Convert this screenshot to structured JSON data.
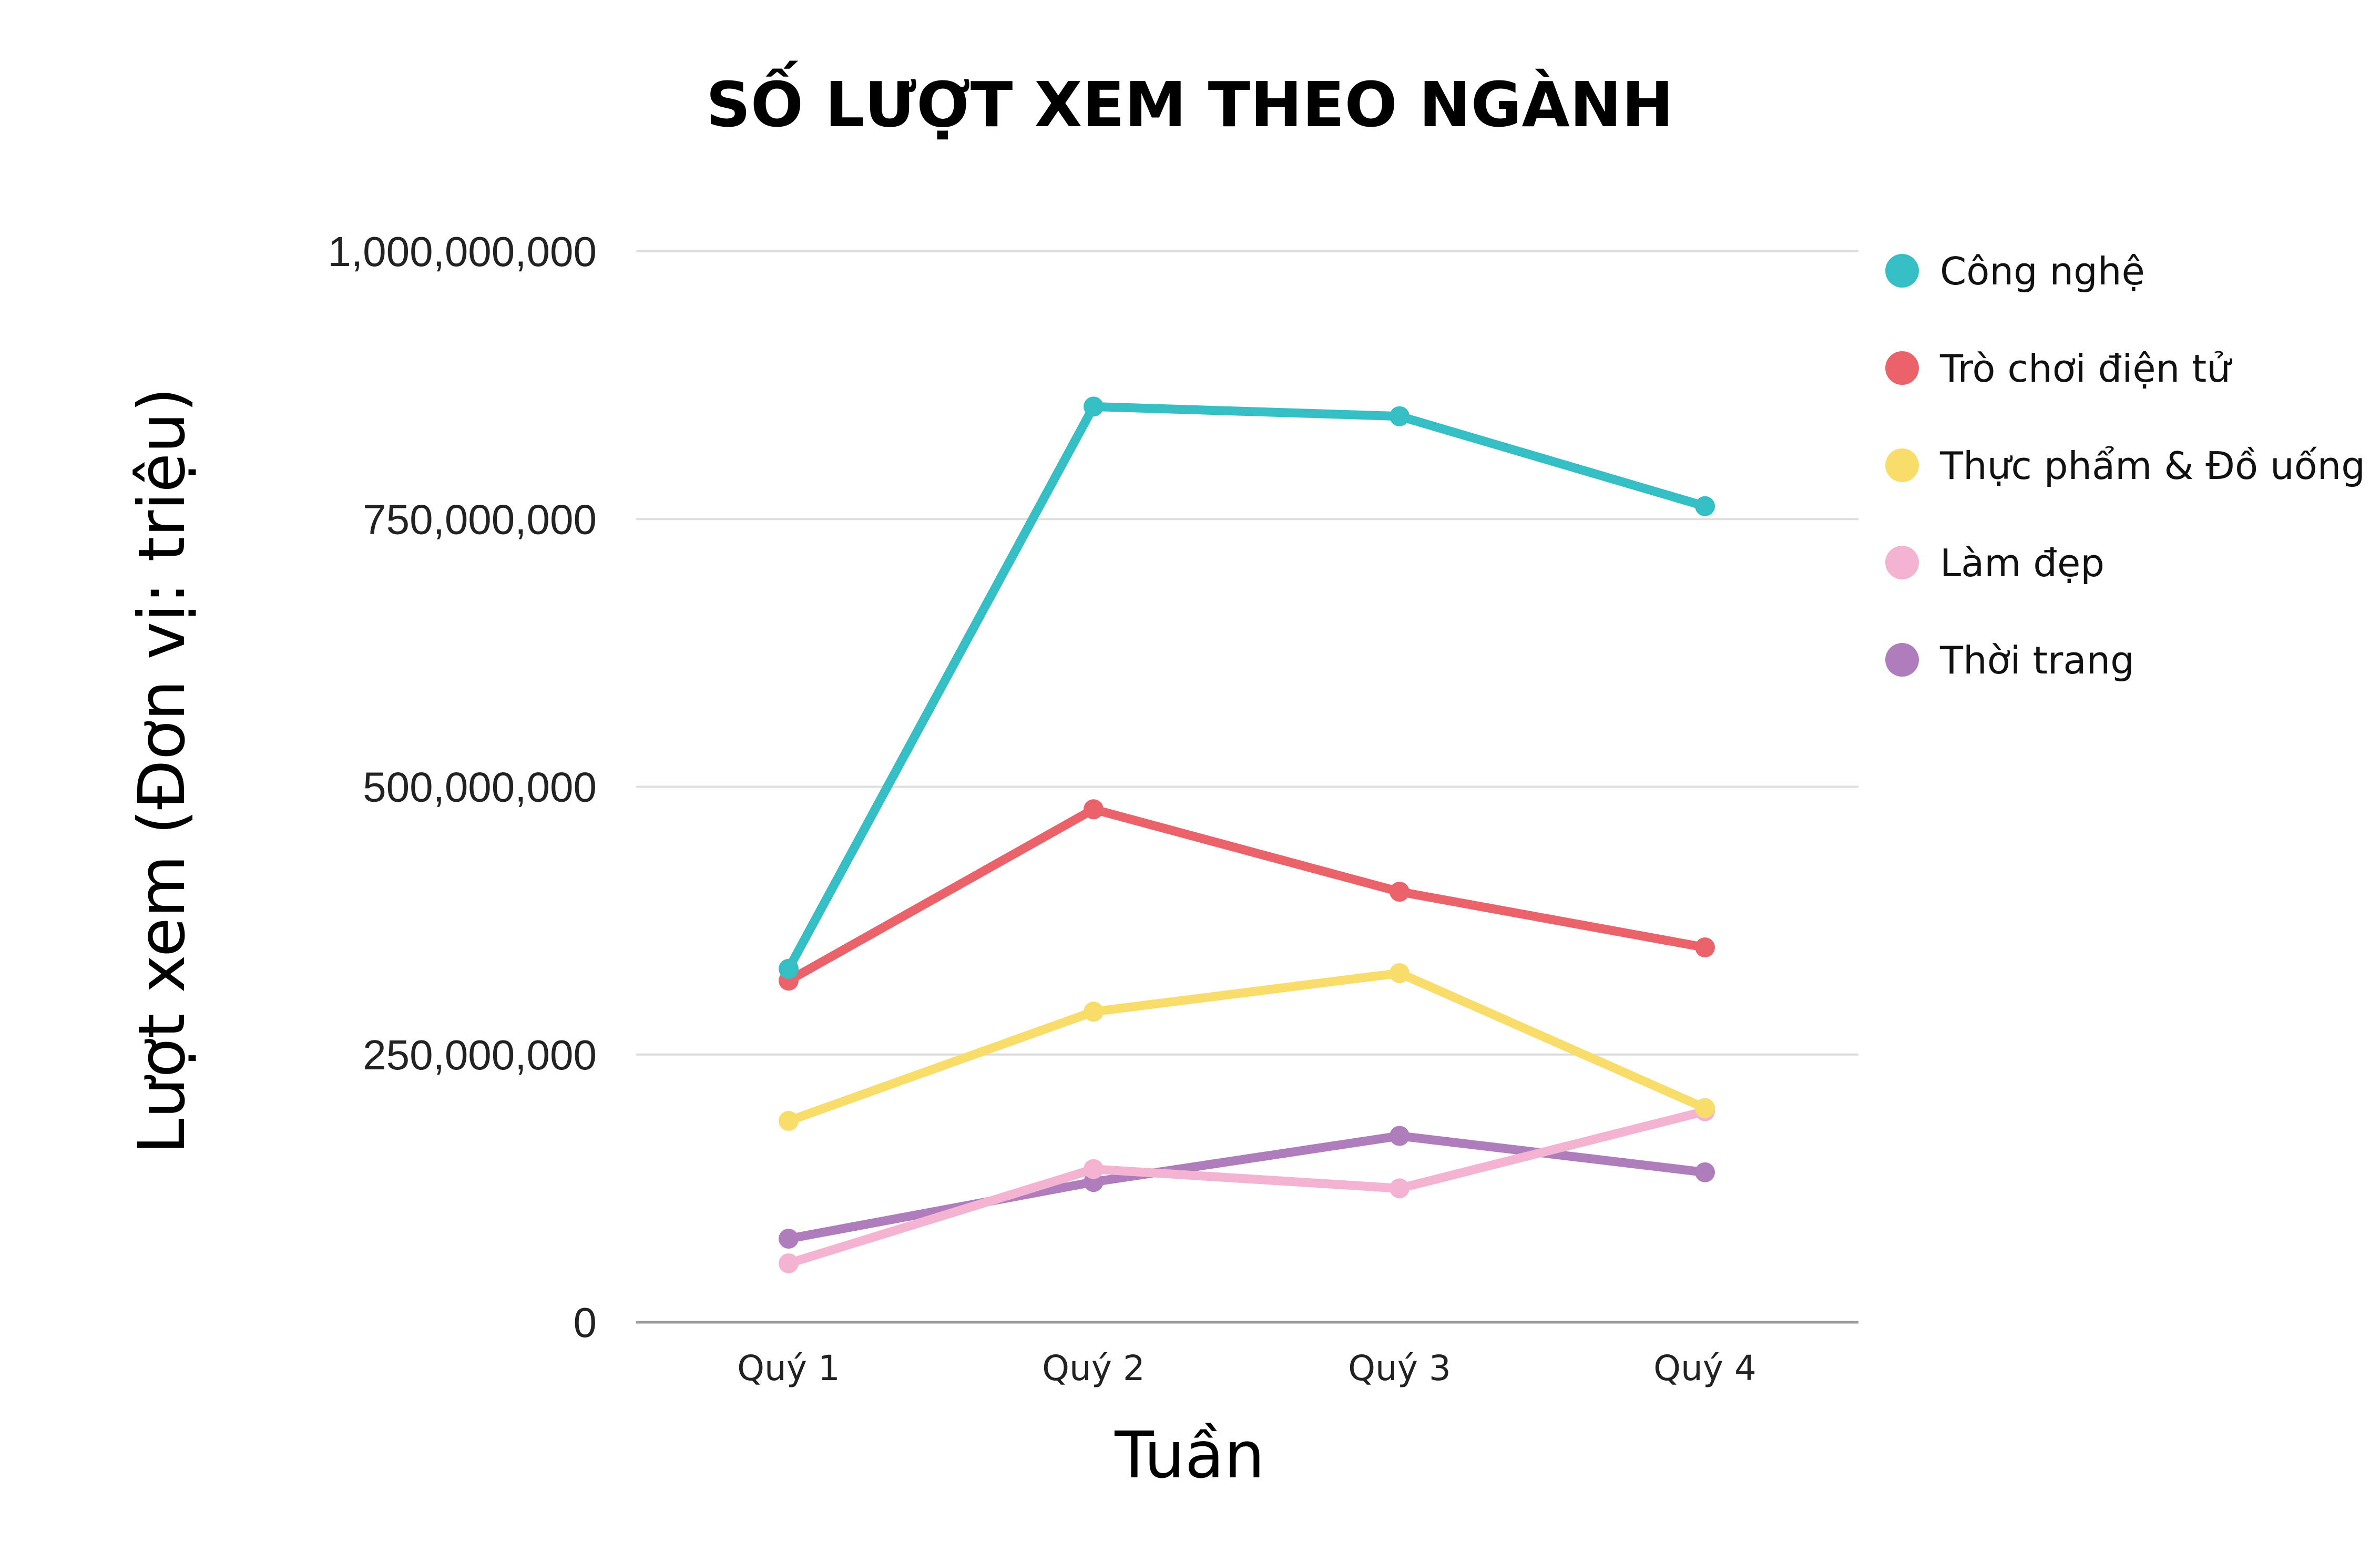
{
  "chart_data": {
    "type": "line",
    "title": "SỐ LƯỢT XEM THEO NGÀNH",
    "xlabel": "Tuần",
    "ylabel": "Lượt xem (Đơn vị: triệu)",
    "categories": [
      "Quý 1",
      "Quý 2",
      "Quý 3",
      "Quý 4"
    ],
    "ylim": [
      0,
      1000000000
    ],
    "yticks": [
      0,
      250000000,
      500000000,
      750000000,
      1000000000
    ],
    "ytick_labels": [
      "0",
      "250,000,000",
      "500,000,000",
      "750,000,000",
      "1,000,000,000"
    ],
    "grid": true,
    "legend_position": "right",
    "series": [
      {
        "name": "Công nghệ",
        "color": "#35bfc5",
        "values": [
          330000000,
          855000000,
          846000000,
          762000000
        ]
      },
      {
        "name": "Trò chơi điện tử",
        "color": "#ea636b",
        "values": [
          319000000,
          479000000,
          402000000,
          350000000
        ]
      },
      {
        "name": "Thực phẩm & Đồ uống",
        "color": "#f9dd6a",
        "values": [
          188000000,
          290000000,
          326000000,
          200000000
        ]
      },
      {
        "name": "Làm đẹp",
        "color": "#f5b3d2",
        "values": [
          55000000,
          143000000,
          125000000,
          197000000
        ]
      },
      {
        "name": "Thời trang",
        "color": "#b07dbc",
        "values": [
          78000000,
          131000000,
          174000000,
          140000000
        ]
      }
    ]
  }
}
